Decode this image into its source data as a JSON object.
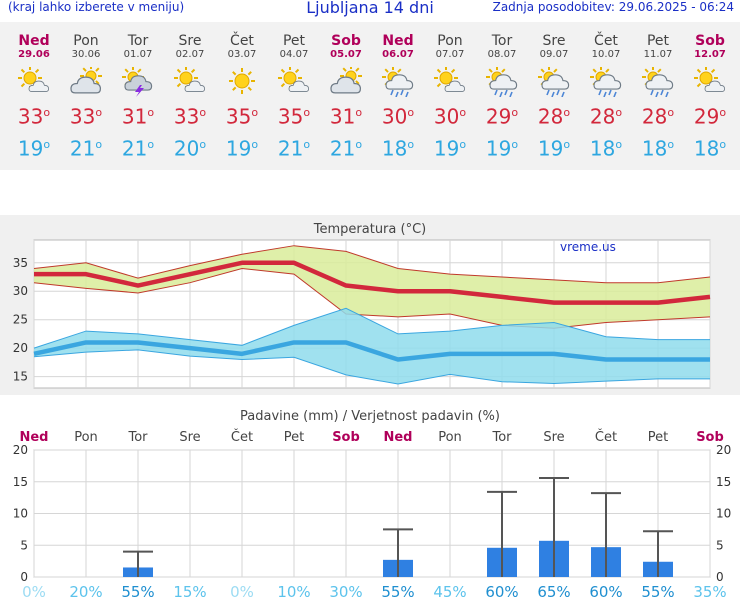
{
  "header": {
    "menu_hint": "(kraj lahko izberete v meniju)",
    "title": "Ljubljana 14 dni",
    "updated": "Zadnja posodobitev: 29.06.2025 - 06:24"
  },
  "colors": {
    "weekend": "#b0005a",
    "max_temp": "#d2283c",
    "min_temp": "#2ea7e0",
    "bar": "#2f80e2",
    "prob": "#2ea7e0"
  },
  "days": [
    {
      "name": "Ned",
      "date": "29.06",
      "icon": "sun-cloud-icon",
      "max": "33",
      "min": "19",
      "weekend": true
    },
    {
      "name": "Pon",
      "date": "30.06",
      "icon": "cloudy-sun-icon",
      "max": "33",
      "min": "21",
      "weekend": false
    },
    {
      "name": "Tor",
      "date": "01.07",
      "icon": "storm-icon",
      "max": "31",
      "min": "21",
      "weekend": false
    },
    {
      "name": "Sre",
      "date": "02.07",
      "icon": "sun-cloud-icon",
      "max": "33",
      "min": "20",
      "weekend": false
    },
    {
      "name": "Čet",
      "date": "03.07",
      "icon": "sun-icon",
      "max": "35",
      "min": "19",
      "weekend": false
    },
    {
      "name": "Pet",
      "date": "04.07",
      "icon": "sun-cloud-icon",
      "max": "35",
      "min": "21",
      "weekend": false
    },
    {
      "name": "Sob",
      "date": "05.07",
      "icon": "cloudy-sun-icon",
      "max": "31",
      "min": "21",
      "weekend": true
    },
    {
      "name": "Ned",
      "date": "06.07",
      "icon": "rain-icon",
      "max": "30",
      "min": "18",
      "weekend": true
    },
    {
      "name": "Pon",
      "date": "07.07",
      "icon": "sun-cloud-icon",
      "max": "30",
      "min": "19",
      "weekend": false
    },
    {
      "name": "Tor",
      "date": "08.07",
      "icon": "rain-icon",
      "max": "29",
      "min": "19",
      "weekend": false
    },
    {
      "name": "Sre",
      "date": "09.07",
      "icon": "rain-icon",
      "max": "28",
      "min": "19",
      "weekend": false
    },
    {
      "name": "Čet",
      "date": "10.07",
      "icon": "rain-icon",
      "max": "28",
      "min": "18",
      "weekend": false
    },
    {
      "name": "Pet",
      "date": "11.07",
      "icon": "rain-icon",
      "max": "28",
      "min": "18",
      "weekend": false
    },
    {
      "name": "Sob",
      "date": "12.07",
      "icon": "sun-cloud-icon",
      "max": "29",
      "min": "18",
      "weekend": true
    }
  ],
  "chart_data": [
    {
      "type": "line",
      "title": "Temperatura (°C)",
      "watermark": "vreme.us",
      "x": [
        "Ned",
        "Pon",
        "Tor",
        "Sre",
        "Čet",
        "Pet",
        "Sob",
        "Ned",
        "Pon",
        "Tor",
        "Sre",
        "Čet",
        "Pet",
        "Sob"
      ],
      "ylim": [
        13,
        39
      ],
      "yticks": [
        15,
        20,
        25,
        30,
        35
      ],
      "grid": true,
      "series": [
        {
          "values": [
            33,
            33,
            31,
            33,
            35,
            35,
            31,
            30,
            30,
            29,
            28,
            28,
            28,
            29
          ]
        },
        {
          "values": [
            19,
            21,
            21,
            20,
            19,
            21,
            21,
            18,
            19,
            19,
            19,
            18,
            18,
            18
          ]
        }
      ],
      "bands": [
        {
          "upper": [
            34,
            35,
            32.3,
            34.5,
            36.5,
            38,
            37,
            34,
            33,
            32.5,
            32,
            31.5,
            31.5,
            32.5
          ],
          "lower": [
            31.5,
            30.5,
            29.7,
            31.5,
            34,
            33,
            26,
            25.5,
            26,
            24,
            23.5,
            24.5,
            25,
            25.5
          ]
        },
        {
          "upper": [
            20,
            23,
            22.5,
            21.5,
            20.5,
            24,
            27,
            22.5,
            23,
            24,
            24.5,
            22,
            21.5,
            21.5
          ],
          "lower": [
            18.5,
            19.3,
            19.7,
            18.6,
            18,
            18.4,
            15.3,
            13.7,
            15.4,
            14.1,
            13.8,
            14.2,
            14.6,
            14.6
          ]
        }
      ]
    },
    {
      "type": "bar",
      "title": "Padavine (mm) / Verjetnost padavin (%)",
      "categories": [
        "Ned",
        "Pon",
        "Tor",
        "Sre",
        "Čet",
        "Pet",
        "Sob",
        "Ned",
        "Pon",
        "Tor",
        "Sre",
        "Čet",
        "Pet",
        "Sob"
      ],
      "weekend": [
        true,
        false,
        false,
        false,
        false,
        false,
        true,
        true,
        false,
        false,
        false,
        false,
        false,
        true
      ],
      "values": [
        0,
        0,
        1.5,
        0,
        0,
        0,
        0,
        2.7,
        0,
        4.6,
        5.7,
        4.7,
        2.4,
        0
      ],
      "errors": [
        0,
        0,
        4,
        0,
        0,
        0,
        0,
        7.5,
        0,
        13.4,
        15.6,
        13.2,
        7.2,
        0
      ],
      "probability": [
        "0%",
        "20%",
        "55%",
        "15%",
        "0%",
        "10%",
        "30%",
        "55%",
        "45%",
        "60%",
        "65%",
        "60%",
        "55%",
        "35%"
      ],
      "ylim": [
        0,
        20
      ],
      "yticks": [
        0,
        5,
        10,
        15,
        20
      ]
    }
  ]
}
